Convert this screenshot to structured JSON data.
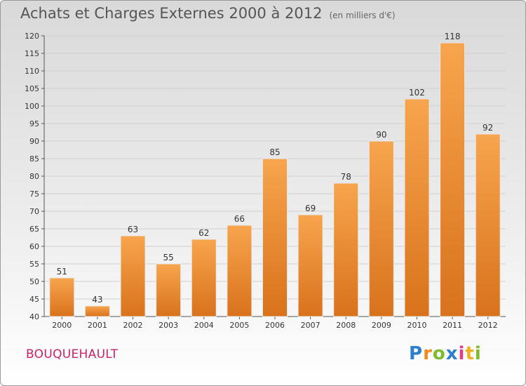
{
  "header": {
    "title": "Achats et Charges Externes 2000 à 2012",
    "subtitle": "(en milliers d'€)"
  },
  "footer": {
    "commune": "BOUQUEHAULT",
    "logo": "Proxiti"
  },
  "colors": {
    "bar_light": "#f7a54e",
    "bar_dark": "#d9721c",
    "grid": "#cfcfcf",
    "commune_text": "#cc2266"
  },
  "chart_data": {
    "type": "bar",
    "title": "Achats et Charges Externes 2000 à 2012",
    "subtitle": "(en milliers d'€)",
    "xlabel": "",
    "ylabel": "",
    "categories": [
      "2000",
      "2001",
      "2002",
      "2003",
      "2004",
      "2005",
      "2006",
      "2007",
      "2008",
      "2009",
      "2010",
      "2011",
      "2012"
    ],
    "values": [
      51,
      43,
      63,
      55,
      62,
      66,
      85,
      69,
      78,
      90,
      102,
      118,
      92
    ],
    "ylim": [
      40,
      120
    ],
    "yticks": [
      40,
      45,
      50,
      55,
      60,
      65,
      70,
      75,
      80,
      85,
      90,
      95,
      100,
      105,
      110,
      115,
      120
    ],
    "grid": true,
    "legend": "none"
  }
}
